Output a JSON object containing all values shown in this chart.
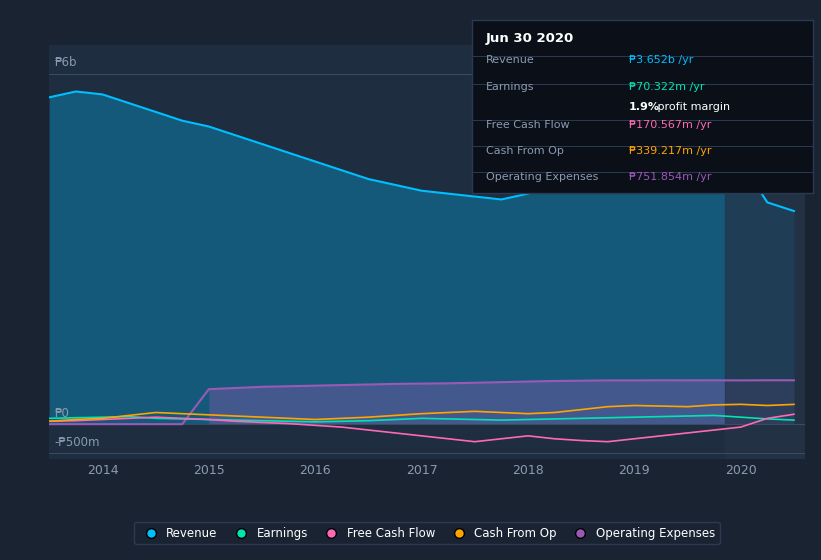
{
  "background_color": "#1a2332",
  "plot_bg_color": "#1e2d40",
  "highlight_bg_color": "#243347",
  "ylabel_top": "₱6b",
  "ylabel_zero": "₱0",
  "ylabel_neg": "-₱500m",
  "xlabel_years": [
    "2014",
    "2015",
    "2016",
    "2017",
    "2018",
    "2019",
    "2020"
  ],
  "legend_items": [
    "Revenue",
    "Earnings",
    "Free Cash Flow",
    "Cash From Op",
    "Operating Expenses"
  ],
  "legend_colors": [
    "#00bfff",
    "#00e5b0",
    "#ff69b4",
    "#ffa500",
    "#9b59b6"
  ],
  "revenue_color": "#00bfff",
  "earnings_color": "#00e5b0",
  "fcf_color": "#ff69b4",
  "cashfromop_color": "#ffa500",
  "opex_color": "#9b59b6",
  "tooltip_title": "Jun 30 2020",
  "tooltip_revenue_label": "Revenue",
  "tooltip_revenue_value": "₱3.652b /yr",
  "tooltip_earnings_label": "Earnings",
  "tooltip_earnings_value": "₱70.322m /yr",
  "tooltip_margin": "1.9% profit margin",
  "tooltip_fcf_label": "Free Cash Flow",
  "tooltip_fcf_value": "₱170.567m /yr",
  "tooltip_cashop_label": "Cash From Op",
  "tooltip_cashop_value": "₱339.217m /yr",
  "tooltip_opex_label": "Operating Expenses",
  "tooltip_opex_value": "₱751.854m /yr",
  "x": [
    2013.5,
    2013.75,
    2014.0,
    2014.25,
    2014.5,
    2014.75,
    2015.0,
    2015.25,
    2015.5,
    2015.75,
    2016.0,
    2016.25,
    2016.5,
    2016.75,
    2017.0,
    2017.25,
    2017.5,
    2017.75,
    2018.0,
    2018.25,
    2018.5,
    2018.75,
    2019.0,
    2019.25,
    2019.5,
    2019.75,
    2020.0,
    2020.25,
    2020.5
  ],
  "revenue": [
    5600,
    5700,
    5650,
    5500,
    5350,
    5200,
    5100,
    4950,
    4800,
    4650,
    4500,
    4350,
    4200,
    4100,
    4000,
    3950,
    3900,
    3850,
    3950,
    4100,
    4400,
    4650,
    4800,
    4750,
    4700,
    4600,
    4500,
    3800,
    3652
  ],
  "earnings": [
    100,
    110,
    120,
    130,
    100,
    90,
    80,
    70,
    60,
    50,
    40,
    50,
    60,
    80,
    100,
    90,
    80,
    70,
    80,
    90,
    100,
    110,
    120,
    130,
    140,
    150,
    120,
    90,
    70
  ],
  "fcf": [
    50,
    60,
    80,
    100,
    120,
    100,
    80,
    50,
    30,
    10,
    -20,
    -50,
    -100,
    -150,
    -200,
    -250,
    -300,
    -250,
    -200,
    -250,
    -280,
    -300,
    -250,
    -200,
    -150,
    -100,
    -50,
    100,
    170
  ],
  "cashfromop": [
    50,
    80,
    100,
    150,
    200,
    180,
    160,
    140,
    120,
    100,
    80,
    100,
    120,
    150,
    180,
    200,
    220,
    200,
    180,
    200,
    250,
    300,
    320,
    310,
    300,
    330,
    340,
    320,
    339
  ],
  "opex": [
    0,
    0,
    0,
    0,
    0,
    0,
    600,
    620,
    640,
    650,
    660,
    670,
    680,
    690,
    695,
    700,
    710,
    720,
    730,
    740,
    745,
    750,
    750,
    752,
    751,
    752,
    750,
    752,
    752
  ],
  "ylim": [
    -600,
    6500
  ],
  "xlim": [
    2013.5,
    2020.6
  ]
}
